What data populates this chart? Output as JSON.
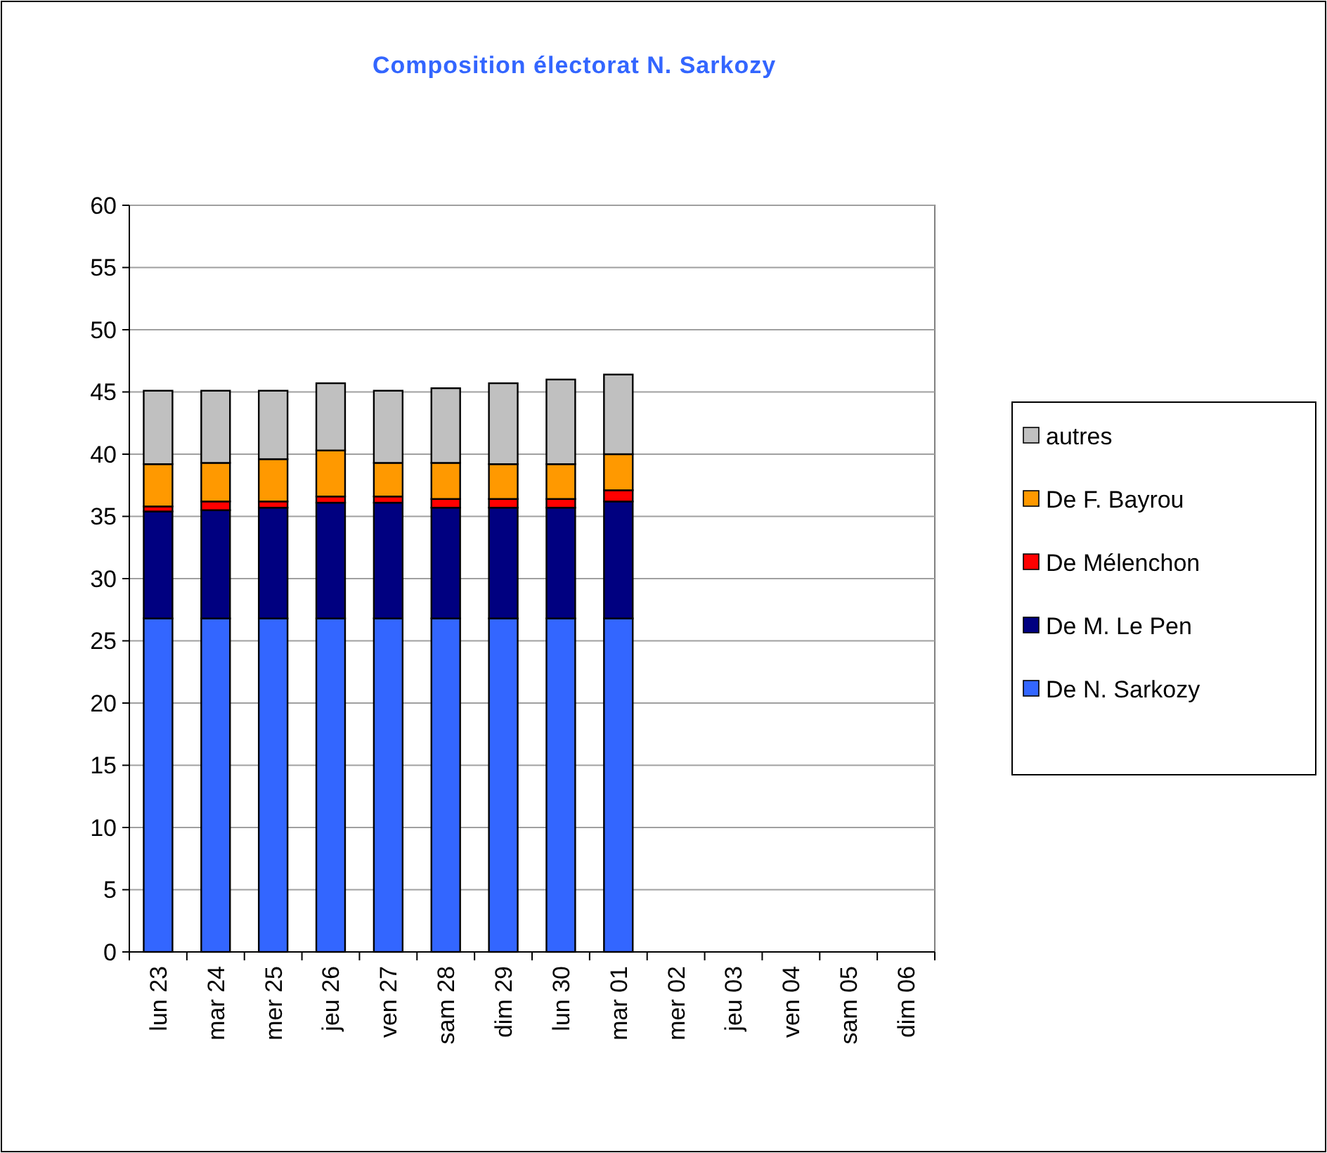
{
  "chart_data": {
    "type": "bar",
    "title": "Composition électorat N. Sarkozy",
    "stacked": true,
    "categories": [
      "lun 23",
      "mar 24",
      "mer 25",
      "jeu 26",
      "ven 27",
      "sam 28",
      "dim 29",
      "lun 30",
      "mar 01",
      "mer 02",
      "jeu 03",
      "ven 04",
      "sam 05",
      "dim 06"
    ],
    "series": [
      {
        "name": "De N. Sarkozy",
        "color": "#3366ff",
        "values": [
          26.8,
          26.8,
          26.8,
          26.8,
          26.8,
          26.8,
          26.8,
          26.8,
          26.8,
          null,
          null,
          null,
          null,
          null
        ]
      },
      {
        "name": "De M. Le Pen",
        "color": "#000080",
        "values": [
          8.6,
          8.7,
          8.9,
          9.3,
          9.3,
          8.9,
          8.9,
          8.9,
          9.4,
          null,
          null,
          null,
          null,
          null
        ]
      },
      {
        "name": "De Mélenchon",
        "color": "#ff0000",
        "values": [
          0.4,
          0.7,
          0.5,
          0.5,
          0.5,
          0.7,
          0.7,
          0.7,
          0.9,
          null,
          null,
          null,
          null,
          null
        ]
      },
      {
        "name": "De F. Bayrou",
        "color": "#ff9900",
        "values": [
          3.4,
          3.1,
          3.4,
          3.7,
          2.7,
          2.9,
          2.8,
          2.8,
          2.9,
          null,
          null,
          null,
          null,
          null
        ]
      },
      {
        "name": "autres",
        "color": "#c0c0c0",
        "values": [
          5.9,
          5.8,
          5.5,
          5.4,
          5.8,
          6.0,
          6.5,
          6.8,
          6.4,
          null,
          null,
          null,
          null,
          null
        ]
      }
    ],
    "ylim": [
      0,
      60
    ],
    "yticks": [
      0,
      5,
      10,
      15,
      20,
      25,
      30,
      35,
      40,
      45,
      50,
      55,
      60
    ],
    "grid": "y",
    "legend": "right"
  }
}
